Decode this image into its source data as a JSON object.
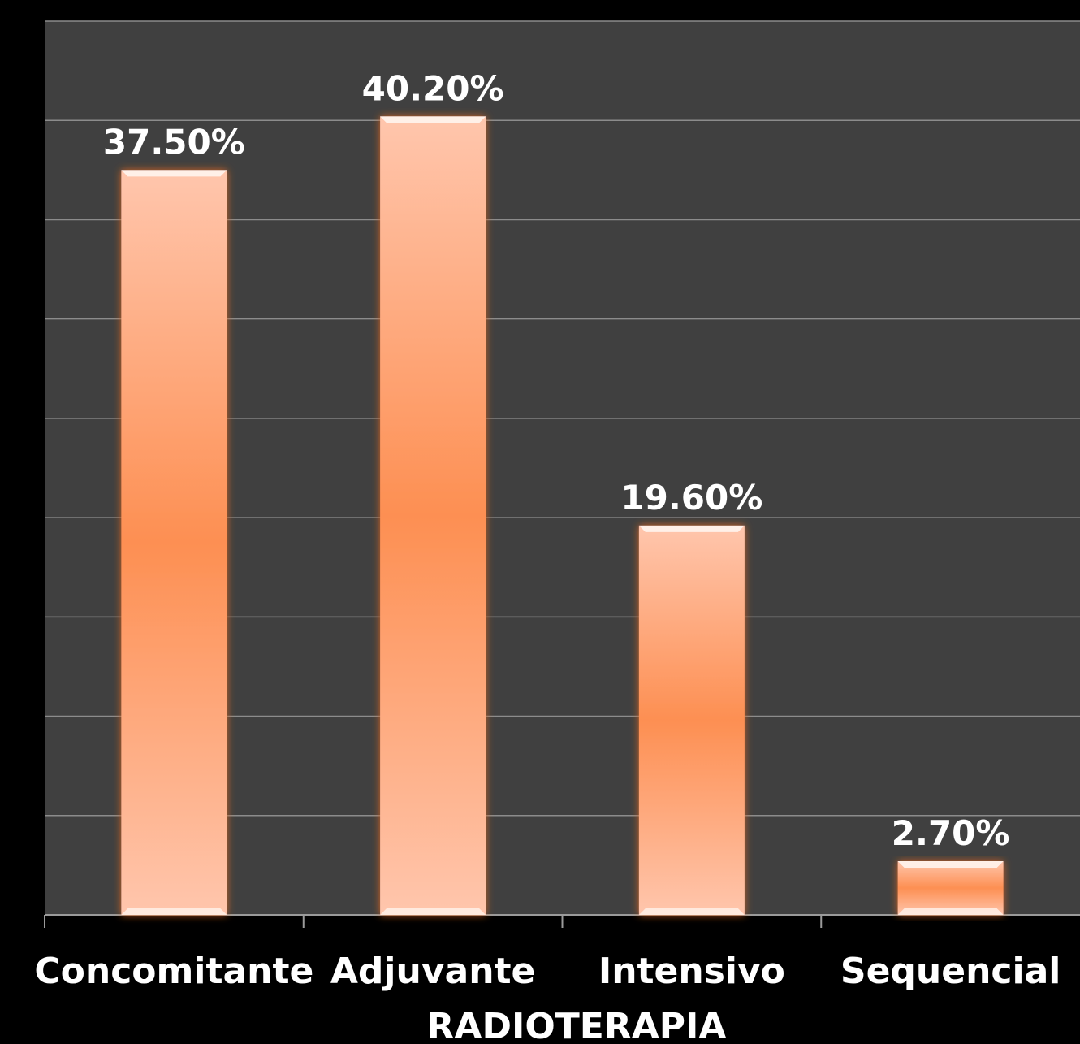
{
  "chart_data": {
    "type": "bar",
    "categories": [
      "Concomitante",
      "Adjuvante",
      "Intensivo",
      "Sequencial"
    ],
    "values": [
      37.5,
      40.2,
      19.6,
      2.7
    ],
    "value_labels": [
      "37.50%",
      "40.20%",
      "19.60%",
      "2.70%"
    ],
    "xlabel": "RADIOTERAPIA",
    "ylabel": "",
    "ylim": [
      0,
      45
    ],
    "grid": true,
    "legend": "none",
    "colors": {
      "page_background": "#000000",
      "plot_background": "#404040",
      "gridline": "#8c8c8c",
      "bar_center": "#fd8f52",
      "bar_edge": "#ffc2a6",
      "bar_glow": "#e0661f",
      "text": "#ffffff"
    }
  }
}
